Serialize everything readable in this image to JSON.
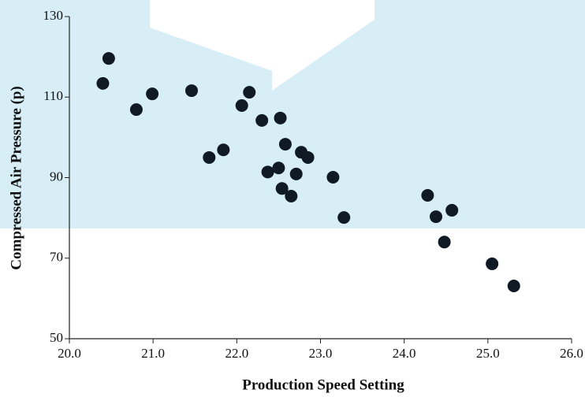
{
  "chart_data": {
    "type": "scatter",
    "xlabel": "Production Speed Setting",
    "ylabel": "Compressed Air Pressure (p)",
    "color": "#0f1a24",
    "x": [
      20.4,
      20.47,
      20.8,
      20.99,
      21.46,
      21.67,
      21.84,
      22.06,
      22.15,
      22.3,
      22.52,
      22.58,
      22.37,
      22.5,
      22.54,
      22.65,
      22.71,
      22.77,
      22.85,
      23.15,
      23.28,
      24.28,
      24.38,
      24.57,
      24.48,
      25.05,
      25.31
    ],
    "values": [
      113.4,
      119.6,
      106.9,
      110.8,
      111.6,
      95.0,
      96.9,
      107.9,
      111.2,
      104.2,
      104.8,
      98.3,
      91.4,
      92.4,
      87.3,
      85.4,
      90.9,
      96.3,
      95.0,
      90.1,
      80.1,
      85.6,
      80.3,
      81.9,
      74.0,
      68.6,
      63.1
    ],
    "xlim": [
      20,
      26
    ],
    "xticks": [
      {
        "value": 20,
        "label": "20.0"
      },
      {
        "value": 21,
        "label": "21.0"
      },
      {
        "value": 22,
        "label": "22.0"
      },
      {
        "value": 23,
        "label": "23.0"
      },
      {
        "value": 24,
        "label": "24.0"
      },
      {
        "value": 25,
        "label": "25.0"
      },
      {
        "value": 26,
        "label": "26.0"
      }
    ],
    "ylim": [
      50,
      130
    ],
    "yticks": [
      50,
      70,
      90,
      110,
      130
    ]
  }
}
